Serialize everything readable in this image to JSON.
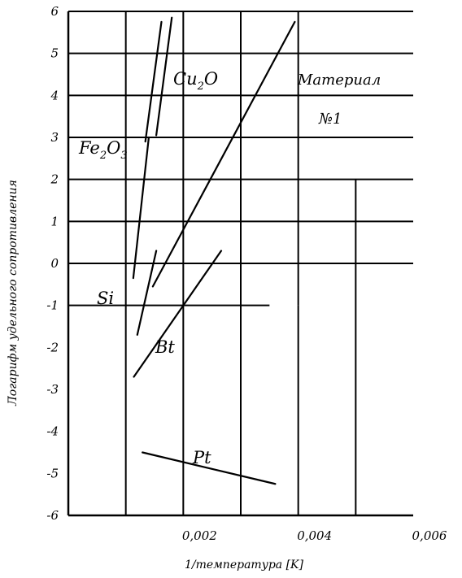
{
  "chart_data": {
    "type": "line",
    "title": "",
    "xlabel": "1/температура [K]",
    "ylabel": "Логарифм удельного сопротивления",
    "xlim": [
      0,
      0.006
    ],
    "ylim": [
      -6,
      6
    ],
    "x_ticks": [
      {
        "value": 0.002,
        "label": "0,002"
      },
      {
        "value": 0.004,
        "label": "0,004"
      },
      {
        "value": 0.006,
        "label": "0,006"
      }
    ],
    "y_ticks": [
      {
        "value": 6,
        "label": "6"
      },
      {
        "value": 5,
        "label": "5"
      },
      {
        "value": 4,
        "label": "4"
      },
      {
        "value": 3,
        "label": "3"
      },
      {
        "value": 2,
        "label": "2"
      },
      {
        "value": 1,
        "label": "1"
      },
      {
        "value": 0,
        "label": "0"
      },
      {
        "value": -1,
        "label": "-1"
      },
      {
        "value": -2,
        "label": "-2"
      },
      {
        "value": -3,
        "label": "-3"
      },
      {
        "value": -4,
        "label": "-4"
      },
      {
        "value": -5,
        "label": "-5"
      },
      {
        "value": -6,
        "label": "-6"
      }
    ],
    "grid": true,
    "series": [
      {
        "name": "Fe2O3",
        "name_parts": {
          "base": "Fe",
          "sub1": "2",
          "mid": "O",
          "sub2": "3"
        },
        "x": [
          0.00134,
          0.00162
        ],
        "y": [
          2.9,
          5.75
        ]
      },
      {
        "name": "Si",
        "x": [
          0.00113,
          0.0014
        ],
        "y": [
          -0.35,
          3.0
        ]
      },
      {
        "name": "Cu2O",
        "name_parts": {
          "base": "Cu",
          "sub1": "2",
          "mid": "O",
          "sub2": ""
        },
        "x": [
          0.00153,
          0.0018
        ],
        "y": [
          3.05,
          5.85
        ]
      },
      {
        "name": "Материал №1",
        "name_lines": [
          "Материал",
          "№1"
        ],
        "x": [
          0.00147,
          0.00394
        ],
        "y": [
          -0.55,
          5.75
        ]
      },
      {
        "name": "",
        "x": [
          0.0012,
          0.00153
        ],
        "y": [
          -1.7,
          0.3
        ]
      },
      {
        "name": "Bt",
        "x": [
          0.00114,
          0.00266
        ],
        "y": [
          -2.7,
          0.3
        ]
      },
      {
        "name": "Pt",
        "x": [
          0.00129,
          0.0036
        ],
        "y": [
          -4.5,
          -5.25
        ]
      }
    ]
  }
}
